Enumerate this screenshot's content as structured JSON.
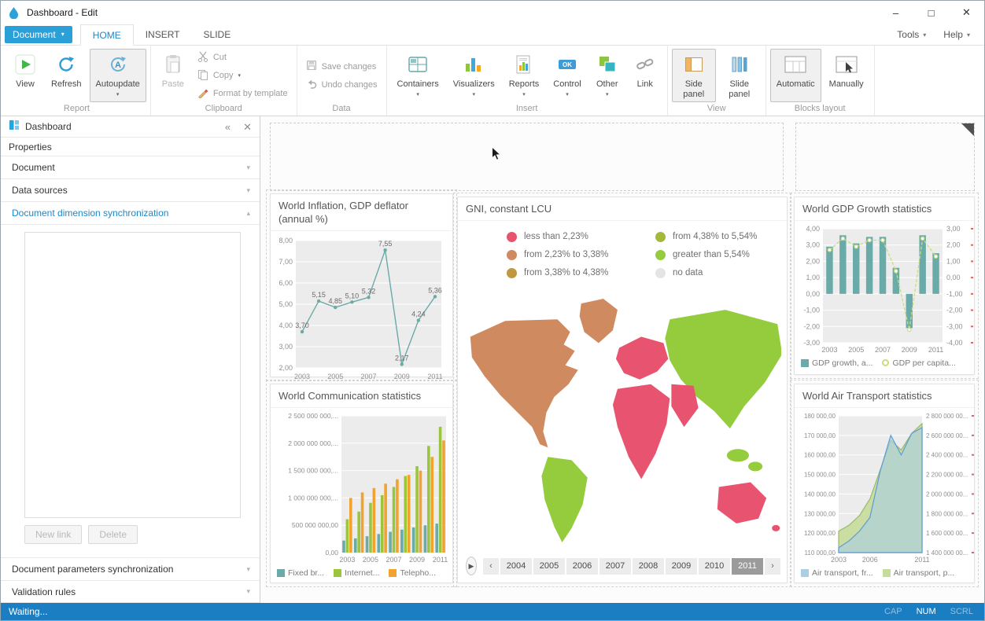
{
  "window": {
    "title": "Dashboard - Edit"
  },
  "menu": {
    "document": "Document",
    "tabs": [
      "HOME",
      "INSERT",
      "SLIDE"
    ],
    "tools": "Tools",
    "help": "Help"
  },
  "ribbon": {
    "report": {
      "view": "View",
      "refresh": "Refresh",
      "autoupdate": "Autoupdate",
      "group": "Report"
    },
    "clipboard": {
      "paste": "Paste",
      "cut": "Cut",
      "copy": "Copy",
      "format": "Format by template",
      "group": "Clipboard"
    },
    "data": {
      "save": "Save changes",
      "undo": "Undo changes",
      "group": "Data"
    },
    "insert": {
      "containers": "Containers",
      "visualizers": "Visualizers",
      "reports": "Reports",
      "control": "Control",
      "other": "Other",
      "link": "Link",
      "group": "Insert"
    },
    "view": {
      "side": "Side panel",
      "slide": "Slide panel",
      "group": "View"
    },
    "blocks": {
      "automatic": "Automatic",
      "manually": "Manually",
      "group": "Blocks layout"
    }
  },
  "sidebar": {
    "panel_title": "Dashboard",
    "properties_label": "Properties",
    "accordion": [
      "Document",
      "Data sources",
      "Document dimension synchronization"
    ],
    "new_link": "New link",
    "delete": "Delete",
    "accordion_bottom": [
      "Document parameters synchronization",
      "Validation rules"
    ]
  },
  "statusbar": {
    "text": "Waiting...",
    "cap": "CAP",
    "num": "NUM",
    "scrl": "SCRL"
  },
  "theme": {
    "accent": "#1e87c8",
    "statusbar_bg": "#1b7ec2"
  },
  "chart_data": [
    {
      "type": "line",
      "title": "World Inflation, GDP deflator (annual %)",
      "categories": [
        2003,
        2004,
        2005,
        2006,
        2007,
        2008,
        2009,
        2010,
        2011
      ],
      "values": [
        3.7,
        5.15,
        4.85,
        5.1,
        5.32,
        7.55,
        2.17,
        4.24,
        5.36
      ],
      "point_labels": [
        "3,70",
        "5,15",
        "4,85",
        "5,10",
        "5,32",
        "7,55",
        "2,17",
        "4,24",
        "5,36"
      ],
      "ylim": [
        2,
        8
      ],
      "ytick_values": [
        8,
        7,
        6,
        5,
        4,
        3,
        2
      ],
      "ytick_labels": [
        "8,00",
        "7,00",
        "6,00",
        "5,00",
        "4,00",
        "3,00",
        "2,00"
      ],
      "xtick_labels": [
        "2003",
        "2005",
        "2007",
        "2009",
        "2011"
      ],
      "line_color": "#6aaaa8",
      "grid": true,
      "legend_position": "none"
    },
    {
      "type": "map",
      "title": "GNI, constant LCU",
      "legend": [
        {
          "label": "less than 2,23%",
          "color": "#e8546f"
        },
        {
          "label": "from 2,23% to 3,38%",
          "color": "#cf8a60"
        },
        {
          "label": "from 3,38% to 4,38%",
          "color": "#c0983f"
        },
        {
          "label": "from 4,38% to 5,54%",
          "color": "#a4b83c"
        },
        {
          "label": "greater than 5,54%",
          "color": "#94cc3e"
        },
        {
          "label": "no data",
          "color": "#e4e4e4"
        }
      ],
      "regions": {
        "north_america": "#cf8a60",
        "greenland": "#cf8a60",
        "south_america": "#94cc3e",
        "europe": "#e8546f",
        "africa": "#e8546f",
        "middle_east": "#e8546f",
        "asia": "#94cc3e",
        "se_asia_1": "#94cc3e",
        "se_asia_2": "#94cc3e",
        "australia": "#e8546f",
        "new_zealand": "#e8546f"
      },
      "years": [
        "2004",
        "2005",
        "2006",
        "2007",
        "2008",
        "2009",
        "2010",
        "2011"
      ],
      "selected_year": "2011"
    },
    {
      "type": "bar-line",
      "title": "World GDP Growth statistics",
      "categories": [
        2003,
        2004,
        2005,
        2006,
        2007,
        2008,
        2009,
        2010,
        2011
      ],
      "series": [
        {
          "name": "GDP growth, a...",
          "type": "bar",
          "axis": "left",
          "color": "#6aaaa8",
          "values": [
            2.9,
            3.6,
            3.1,
            3.5,
            3.5,
            1.6,
            -2.1,
            3.6,
            2.5
          ]
        },
        {
          "name": "GDP per capita...",
          "type": "line",
          "axis": "right",
          "color": "#cbdc7e",
          "values": [
            1.7,
            2.4,
            1.9,
            2.3,
            2.3,
            0.4,
            -3.2,
            2.4,
            1.3
          ]
        }
      ],
      "left_axis": {
        "lim": [
          -3,
          4
        ],
        "tick_values": [
          4,
          3,
          2,
          1,
          0,
          -1,
          -2,
          -3
        ],
        "tick_labels": [
          "4,00",
          "3,00",
          "2,00",
          "1,00",
          "0,00",
          "-1,00",
          "-2,00",
          "-3,00"
        ]
      },
      "right_axis": {
        "lim": [
          -4,
          3
        ],
        "tick_values": [
          3,
          2,
          1,
          0,
          -1,
          -2,
          -3,
          -4
        ],
        "tick_labels": [
          "3,00",
          "2,00",
          "1,00",
          "0,00",
          "-1,00",
          "-2,00",
          "-3,00",
          "-4,00"
        ]
      },
      "xtick_labels": [
        "2003",
        "2005",
        "2007",
        "2009",
        "2011"
      ],
      "grid": true,
      "legend_position": "bottom"
    },
    {
      "type": "bar",
      "title": "World Communication statistics",
      "categories": [
        2003,
        2004,
        2005,
        2006,
        2007,
        2008,
        2009,
        2010,
        2011
      ],
      "series": [
        {
          "name": "Fixed br...",
          "color": "#6aaaa8",
          "values": [
            220000000,
            260000000,
            300000000,
            340000000,
            380000000,
            420000000,
            460000000,
            500000000,
            530000000
          ]
        },
        {
          "name": "Internet...",
          "color": "#9bc53d",
          "values": [
            610000000,
            750000000,
            910000000,
            1050000000,
            1200000000,
            1400000000,
            1580000000,
            1950000000,
            2300000000
          ]
        },
        {
          "name": "Telepho...",
          "color": "#f0a32f",
          "values": [
            1000000000,
            1100000000,
            1180000000,
            1260000000,
            1340000000,
            1420000000,
            1500000000,
            1750000000,
            2050000000
          ]
        }
      ],
      "ylim": [
        0,
        2500000000
      ],
      "ytick_values": [
        2500000000,
        2000000000,
        1500000000,
        1000000000,
        500000000,
        0
      ],
      "ytick_labels": [
        "2 500 000 000,...",
        "2 000 000 000,...",
        "1 500 000 000,...",
        "1 000 000 000,...",
        "500 000 000,00",
        "0,00"
      ],
      "xtick_labels": [
        "2003",
        "2005",
        "2007",
        "2009",
        "2011"
      ],
      "grid": true,
      "legend_position": "bottom"
    },
    {
      "type": "area",
      "title": "World Air Transport statistics",
      "categories": [
        2003,
        2004,
        2005,
        2006,
        2007,
        2008,
        2009,
        2010,
        2011
      ],
      "series": [
        {
          "name": "Air transport, fr...",
          "axis": "left",
          "color": "#aacfe4",
          "line_color": "#5b9bd5",
          "values": [
            112500,
            116000,
            121000,
            128000,
            152000,
            170000,
            160000,
            171000,
            174000
          ]
        },
        {
          "name": "Air transport, p...",
          "axis": "right",
          "color": "#c6dc9a",
          "line_color": "#9ab86a",
          "values": [
            1620000000,
            1680000000,
            1780000000,
            1950000000,
            2250000000,
            2550000000,
            2450000000,
            2620000000,
            2720000000
          ]
        }
      ],
      "left_axis": {
        "lim": [
          110000,
          180000
        ],
        "tick_values": [
          180000,
          170000,
          160000,
          150000,
          140000,
          130000,
          120000,
          110000
        ],
        "tick_labels": [
          "180 000,00",
          "170 000,00",
          "160 000,00",
          "150 000,00",
          "140 000,00",
          "130 000,00",
          "120 000,00",
          "110 000,00"
        ]
      },
      "right_axis": {
        "lim": [
          1400000000,
          2800000000
        ],
        "tick_values": [
          2800000000,
          2600000000,
          2400000000,
          2200000000,
          2000000000,
          1800000000,
          1600000000,
          1400000000
        ],
        "tick_labels": [
          "2 800 000 00...",
          "2 600 000 00...",
          "2 400 000 00...",
          "2 200 000 00...",
          "2 000 000 00...",
          "1 800 000 00...",
          "1 600 000 00...",
          "1 400 000 00..."
        ]
      },
      "xtick_labels": [
        "2003",
        "2006",
        "2011"
      ],
      "xtick_positions": [
        0,
        3,
        8
      ],
      "grid": true,
      "legend_position": "bottom"
    }
  ]
}
